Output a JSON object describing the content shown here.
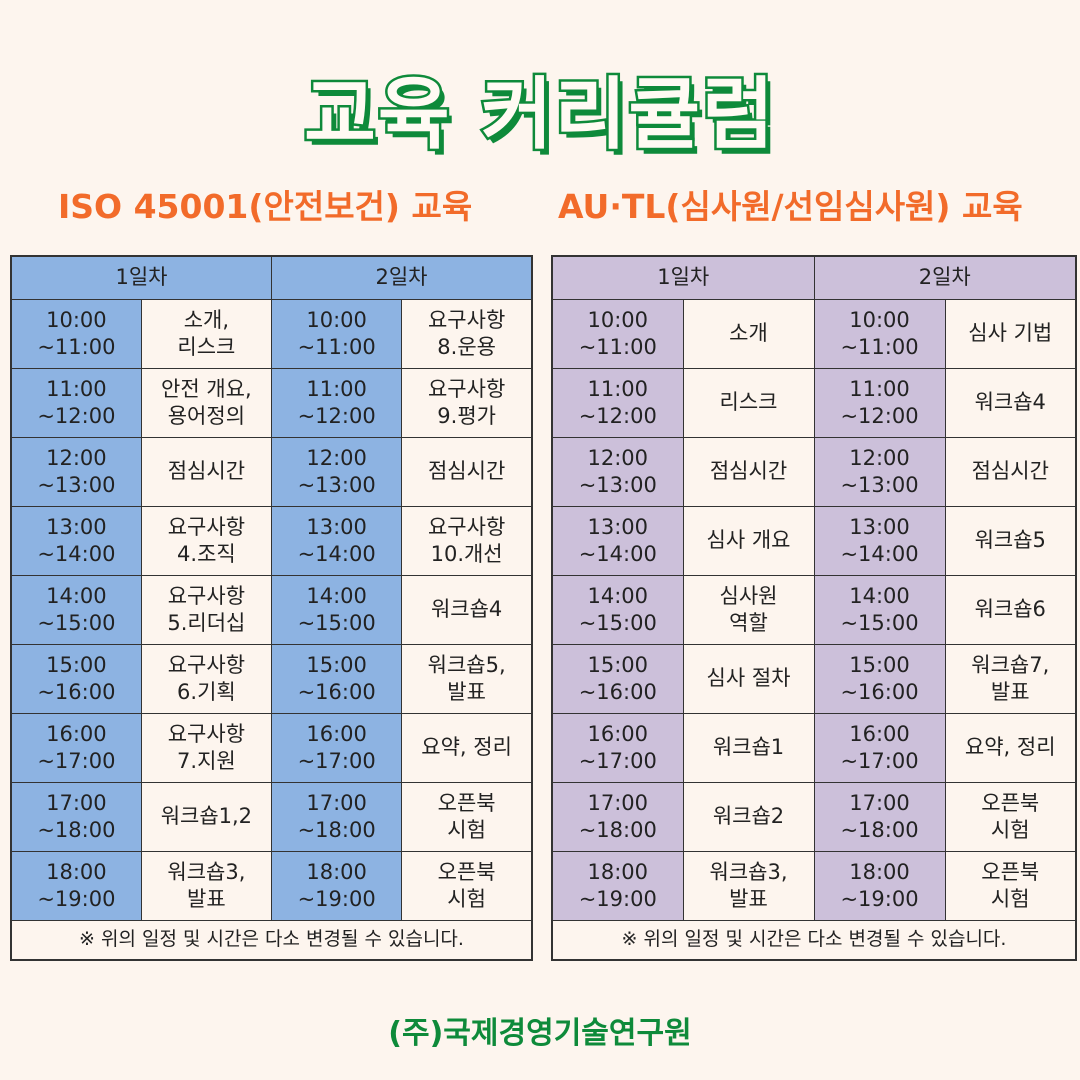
{
  "title": "교육 커리큘럼",
  "colors": {
    "title": "#0e8a3a",
    "subtitle": "#f26b2a",
    "left_header": "#8db3e2",
    "right_header": "#ccc0da",
    "background": "#fdf5ee"
  },
  "tables": [
    {
      "subtitle": "ISO 45001(안전보건) 교육",
      "days": [
        "1일차",
        "2일차"
      ],
      "rows": [
        [
          "10:00\n~11:00",
          "소개,\n리스크",
          "10:00\n~11:00",
          "요구사항\n8.운용"
        ],
        [
          "11:00\n~12:00",
          "안전 개요,\n용어정의",
          "11:00\n~12:00",
          "요구사항\n9.평가"
        ],
        [
          "12:00\n~13:00",
          "점심시간",
          "12:00\n~13:00",
          "점심시간"
        ],
        [
          "13:00\n~14:00",
          "요구사항\n4.조직",
          "13:00\n~14:00",
          "요구사항\n10.개선"
        ],
        [
          "14:00\n~15:00",
          "요구사항\n5.리더십",
          "14:00\n~15:00",
          "워크숍4"
        ],
        [
          "15:00\n~16:00",
          "요구사항\n6.기획",
          "15:00\n~16:00",
          "워크숍5,\n발표"
        ],
        [
          "16:00\n~17:00",
          "요구사항\n7.지원",
          "16:00\n~17:00",
          "요약, 정리"
        ],
        [
          "17:00\n~18:00",
          "워크숍1,2",
          "17:00\n~18:00",
          "오픈북\n시험"
        ],
        [
          "18:00\n~19:00",
          "워크숍3,\n발표",
          "18:00\n~19:00",
          "오픈북\n시험"
        ]
      ],
      "note": "※ 위의 일정 및 시간은 다소 변경될 수 있습니다."
    },
    {
      "subtitle": "AU·TL(심사원/선임심사원) 교육",
      "days": [
        "1일차",
        "2일차"
      ],
      "rows": [
        [
          "10:00\n~11:00",
          "소개",
          "10:00\n~11:00",
          "심사 기법"
        ],
        [
          "11:00\n~12:00",
          "리스크",
          "11:00\n~12:00",
          "워크숍4"
        ],
        [
          "12:00\n~13:00",
          "점심시간",
          "12:00\n~13:00",
          "점심시간"
        ],
        [
          "13:00\n~14:00",
          "심사 개요",
          "13:00\n~14:00",
          "워크숍5"
        ],
        [
          "14:00\n~15:00",
          "심사원\n역할",
          "14:00\n~15:00",
          "워크숍6"
        ],
        [
          "15:00\n~16:00",
          "심사 절차",
          "15:00\n~16:00",
          "워크숍7,\n발표"
        ],
        [
          "16:00\n~17:00",
          "워크숍1",
          "16:00\n~17:00",
          "요약, 정리"
        ],
        [
          "17:00\n~18:00",
          "워크숍2",
          "17:00\n~18:00",
          "오픈북\n시험"
        ],
        [
          "18:00\n~19:00",
          "워크숍3,\n발표",
          "18:00\n~19:00",
          "오픈북\n시험"
        ]
      ],
      "note": "※ 위의 일정 및 시간은 다소 변경될 수 있습니다."
    }
  ],
  "footer": "(주)국제경영기술연구원"
}
